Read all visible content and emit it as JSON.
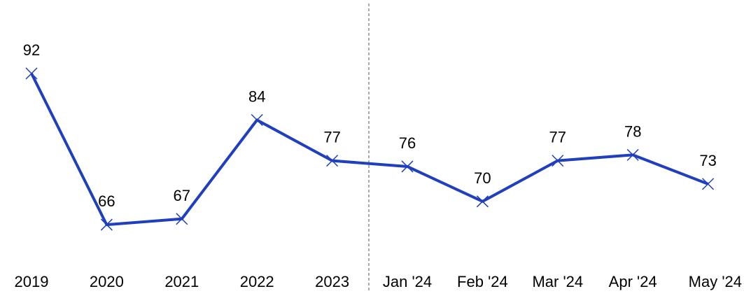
{
  "chart_data": {
    "type": "line",
    "categories": [
      "2019",
      "2020",
      "2021",
      "2022",
      "2023",
      "Jan '24",
      "Feb '24",
      "Mar '24",
      "Apr '24",
      "May '24"
    ],
    "values": [
      92,
      66,
      67,
      84,
      77,
      76,
      70,
      77,
      78,
      73
    ],
    "color": "#1f3fbf",
    "ylim": [
      55,
      100
    ]
  }
}
